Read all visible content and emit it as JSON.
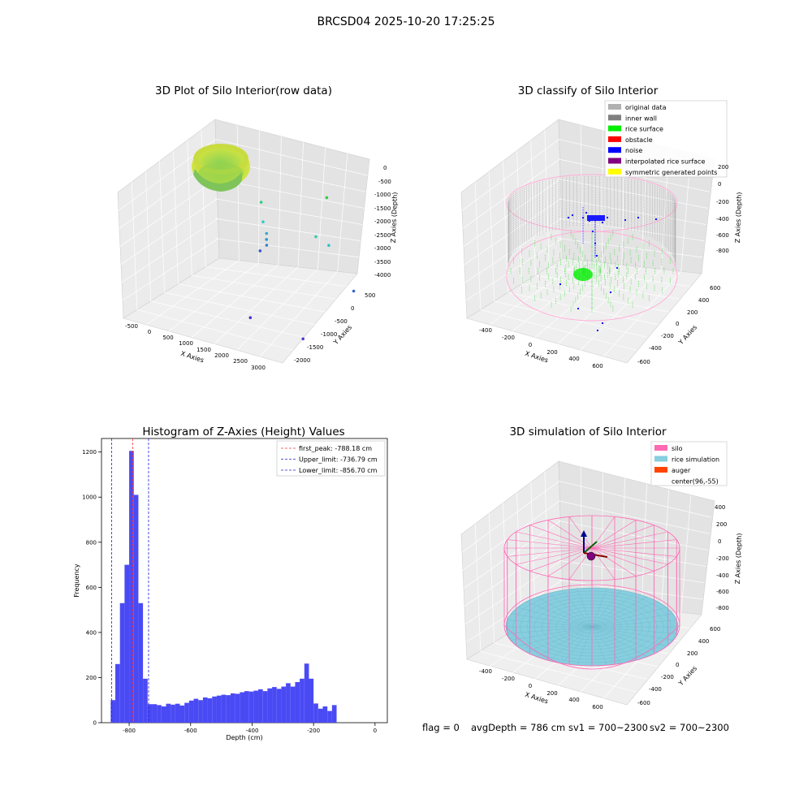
{
  "figure_title": "BRCSD04 2025-10-20 17:25:25",
  "footer": {
    "flag": "flag = 0",
    "avg_depth": "avgDepth = 786 cm",
    "sv1": "sv1 = 700~2300",
    "sv2": "sv2 = 700~2300"
  },
  "colors": {
    "hist_bar": "#4a4af5",
    "peak_line": "#ff3030",
    "limit_line": "#2020d0",
    "silo": "#ff69b4",
    "rice": "#87cedf",
    "auger": "#ff4500"
  },
  "chart_data": [
    {
      "type": "scatter",
      "title": "3D Plot of Silo Interior(row data)",
      "xlabel": "X Axies",
      "ylabel": "Y Axies",
      "zlabel": "Z Axies (Depth)",
      "x_ticks": [
        "-500",
        "0",
        "500",
        "1000",
        "1500",
        "2000",
        "2500",
        "3000"
      ],
      "y_ticks": [
        "500",
        "0",
        "-500",
        "-1000",
        "-1500",
        "-2000"
      ],
      "z_ticks": [
        "0",
        "-500",
        "-1000",
        "-1500",
        "-2000",
        "-2500",
        "-3000",
        "-3500",
        "-4000"
      ],
      "xlim": [
        -700,
        3300
      ],
      "ylim": [
        -2200,
        700
      ],
      "zlim": [
        -4000,
        0
      ],
      "outliers": [
        {
          "x": 300,
          "y": 0,
          "z": -1400
        },
        {
          "x": 350,
          "y": 0,
          "z": -1950
        },
        {
          "x": 400,
          "y": 50,
          "z": -2300
        },
        {
          "x": 420,
          "y": 20,
          "z": -2450
        },
        {
          "x": 440,
          "y": 0,
          "z": -2600
        },
        {
          "x": 200,
          "y": 100,
          "z": -2900
        },
        {
          "x": 1800,
          "y": 200,
          "z": -900
        },
        {
          "x": 2000,
          "y": 0,
          "z": -2100
        },
        {
          "x": 3000,
          "y": -500,
          "z": -2800
        },
        {
          "x": 1300,
          "y": -1700,
          "z": -3400
        },
        {
          "x": 2700,
          "y": -1800,
          "z": -3500
        },
        {
          "x": 1900,
          "y": -300,
          "z": -1700
        }
      ]
    },
    {
      "type": "scatter",
      "title": "3D classify of Silo Interior",
      "xlabel": "X Axies",
      "ylabel": "Y Axies",
      "zlabel": "Z Axies (Depth)",
      "x_ticks": [
        "-400",
        "-200",
        "0",
        "200",
        "400",
        "600"
      ],
      "y_ticks": [
        "600",
        "400",
        "200",
        "0",
        "-200",
        "-400",
        "-600"
      ],
      "z_ticks": [
        "200",
        "0",
        "-200",
        "-400",
        "-600",
        "-800"
      ],
      "legend": [
        {
          "label": "original data",
          "color": "#b0b0b0"
        },
        {
          "label": "inner wall",
          "color": "#808080"
        },
        {
          "label": "rice surface",
          "color": "#00ee00"
        },
        {
          "label": "obstacle",
          "color": "#ff0000"
        },
        {
          "label": "noise",
          "color": "#0000ff"
        },
        {
          "label": "interpolated rice surface",
          "color": "#800080"
        },
        {
          "label": "symmetric generated points",
          "color": "#ffff00"
        }
      ]
    },
    {
      "type": "bar",
      "title": "Histogram of Z-Axies (Height) Values",
      "xlabel": "Depth (cm)",
      "ylabel": "Frequency",
      "xlim": [
        -890,
        40
      ],
      "ylim": [
        0,
        1260
      ],
      "x_ticks": [
        -800,
        -600,
        -400,
        -200,
        0
      ],
      "y_ticks": [
        0,
        200,
        400,
        600,
        800,
        1000,
        1200
      ],
      "bin_start": -860,
      "bin_width": 15,
      "values": [
        100,
        260,
        530,
        700,
        1205,
        1010,
        530,
        195,
        82,
        82,
        78,
        72,
        84,
        80,
        84,
        76,
        88,
        98,
        106,
        100,
        112,
        108,
        116,
        120,
        124,
        122,
        130,
        128,
        135,
        140,
        138,
        142,
        148,
        140,
        152,
        158,
        150,
        160,
        175,
        160,
        180,
        195,
        262,
        195,
        85,
        62,
        72,
        52,
        78
      ],
      "vlines": [
        {
          "label": "first_peak: -788.18 cm",
          "x": -788.18,
          "color": "#ff3030"
        },
        {
          "label": "Upper_limit: -736.79 cm",
          "x": -736.79,
          "color": "#2020d0"
        },
        {
          "label": "Lower_limit: -856.70 cm",
          "x": -856.7,
          "color": "#2020d0"
        }
      ]
    },
    {
      "type": "scatter",
      "title": "3D simulation of Silo Interior",
      "xlabel": "X Axies",
      "ylabel": "Y Axies",
      "zlabel": "Z Axies (Depth)",
      "x_ticks": [
        "-400",
        "-200",
        "0",
        "200",
        "400",
        "600"
      ],
      "y_ticks": [
        "600",
        "400",
        "200",
        "0",
        "-200",
        "-400",
        "-600"
      ],
      "z_ticks": [
        "400",
        "200",
        "0",
        "-200",
        "-400",
        "-600",
        "-800"
      ],
      "legend": [
        {
          "label": "silo",
          "color": "#ff69b4"
        },
        {
          "label": "rice simulation",
          "color": "#87cedf"
        },
        {
          "label": "auger",
          "color": "#ff4500"
        },
        {
          "label": "center(96,-55)",
          "color": ""
        }
      ]
    }
  ]
}
